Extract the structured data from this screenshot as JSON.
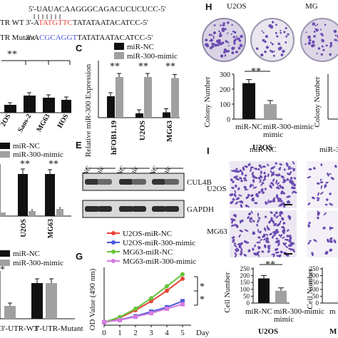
{
  "colors": {
    "black": "#111111",
    "gray": "#a0a0a0",
    "red": "#e8443a",
    "blue": "#4a57d8",
    "green": "#66c43a",
    "pink": "#d47be0",
    "purple": "#6a4ab0",
    "plate": "#d9d3e4"
  },
  "panel_letters": {
    "c": "C",
    "e": "E",
    "g": "G",
    "h": "H",
    "i": "I"
  },
  "seq": {
    "line1": "5'-UAUACAAGGGCAGACUCUCUCC-5'",
    "wt_label": "TR WT",
    "wt_prefix": "3'-A",
    "wt_red": "TATGTTC",
    "wt_suffix": "TATATAATACATCC-5'",
    "mut_label": "TR Mutant",
    "mut_prefix": "3'-A",
    "mut_blue": "CGCAGGT",
    "mut_suffix": "TATATAATACATCC-5'"
  },
  "panel_a": {
    "stars": "**",
    "categories": [
      "2OS",
      "Saos-2",
      "MG63",
      "HOS"
    ]
  },
  "panel_b": {
    "legend": [
      "miR-NC",
      "miR-300-mimic"
    ],
    "stars": [
      "**",
      "**"
    ],
    "categories": [
      "U2OS",
      "MG63"
    ]
  },
  "panel_d": {
    "legend": [
      "miR-NC",
      "miR-300-mimic"
    ],
    "star": "*",
    "categories": [
      "3'-UTR-WT",
      "3'-UTR-Mutant"
    ]
  },
  "panel_e": {
    "group_labels": [
      "hFOB1.19",
      "U2OS",
      "MG63"
    ],
    "lane_labels": [
      "NC",
      "mimic",
      "NC",
      "mimic",
      "NC",
      "mimic"
    ],
    "row_labels": [
      "CUL4B",
      "GAPDH"
    ]
  },
  "panel_h": {
    "cell_line": "U2OS",
    "cell_line2": "MG",
    "star_label": "**",
    "ylabel2": "Colony Number"
  },
  "panel_i": {
    "top_labels": [
      "miR-NC",
      "miR-3"
    ],
    "row_labels": [
      "U2OS",
      "MG63"
    ],
    "star_label": "**",
    "ylabel2": "Cell Number",
    "xlabel2": "m",
    "footer2": "M"
  },
  "chart_data": [
    {
      "id": "c",
      "type": "bar",
      "categories": [
        "hFOB1.19",
        "U2OS",
        "MG63"
      ],
      "series": [
        {
          "name": "miR-NC",
          "values": [
            1.0,
            0.2,
            0.25
          ]
        },
        {
          "name": "miR-300-mimic",
          "values": [
            1.9,
            1.9,
            1.85
          ]
        }
      ],
      "ylabel": "Relative miR-300 Expression",
      "stars": [
        "**",
        "**",
        "**"
      ]
    },
    {
      "id": "g",
      "type": "line",
      "x": [
        0,
        1,
        2,
        3,
        4,
        5
      ],
      "series": [
        {
          "name": "U2OS-miR-NC",
          "values": [
            0.1,
            0.25,
            0.5,
            0.8,
            1.15,
            1.55
          ]
        },
        {
          "name": "U2OS-miR-300-mimic",
          "values": [
            0.1,
            0.18,
            0.3,
            0.45,
            0.6,
            0.8
          ]
        },
        {
          "name": "MG63-miR-NC",
          "values": [
            0.1,
            0.27,
            0.55,
            0.9,
            1.3,
            1.7
          ]
        },
        {
          "name": "MG63-miR-300-mimic",
          "values": [
            0.1,
            0.17,
            0.28,
            0.4,
            0.55,
            0.7
          ]
        }
      ],
      "xticks": [
        "0",
        "1",
        "2",
        "3",
        "4",
        "5"
      ],
      "xlabel": "Day",
      "ylabel": "OD Value (490 nm)",
      "stars": [
        "*",
        "*"
      ]
    },
    {
      "id": "h",
      "type": "bar",
      "categories": [
        "miR-NC",
        "miR-300-mimic"
      ],
      "values": [
        240,
        100
      ],
      "yticks": [
        "0",
        "100",
        "200",
        "300"
      ],
      "ylim": [
        0,
        300
      ],
      "ylabel": "Colony Number",
      "xlabel": "U2OS"
    },
    {
      "id": "i",
      "type": "bar",
      "categories": [
        "miR-NC",
        "miR-300-mimic"
      ],
      "values": [
        180,
        90
      ],
      "yticks": [
        "0",
        "50",
        "100",
        "150",
        "200",
        "250"
      ],
      "ylim": [
        0,
        250
      ],
      "ylabel": "Cell Number",
      "xlabel": "U2OS"
    }
  ]
}
